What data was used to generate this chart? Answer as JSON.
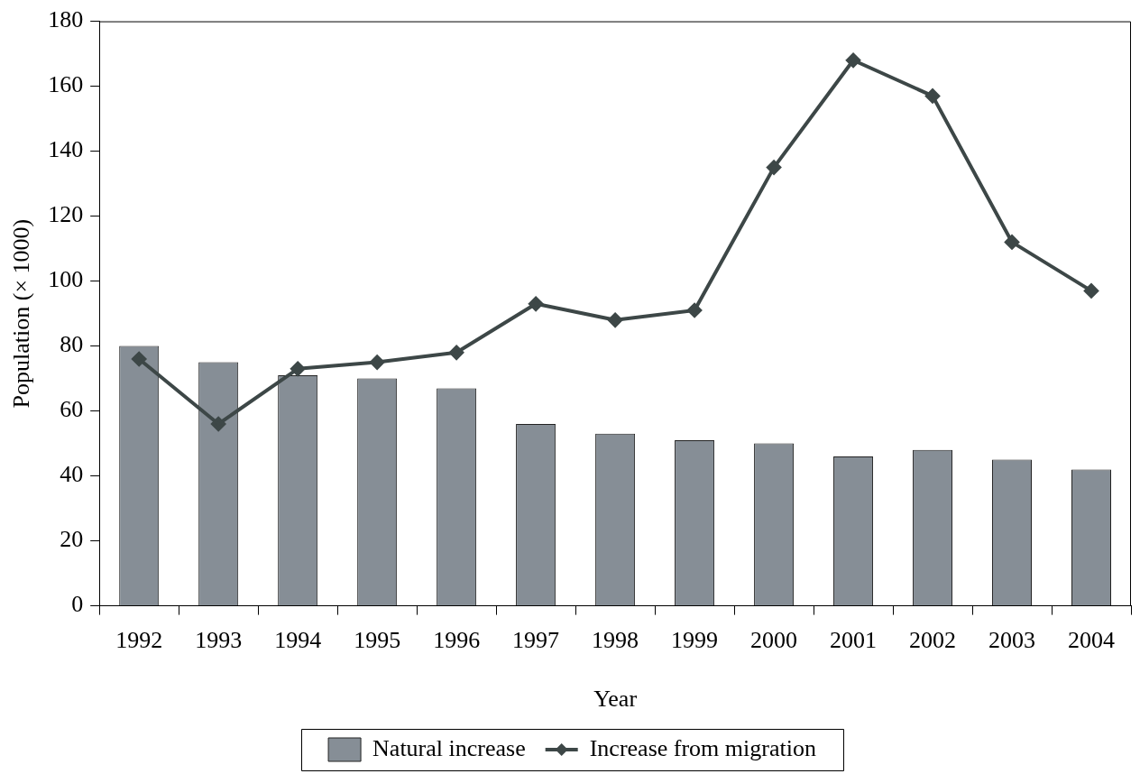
{
  "chart_data": {
    "type": "bar",
    "xlabel": "Year",
    "ylabel": "Population (× 1000)",
    "categories": [
      "1992",
      "1993",
      "1994",
      "1995",
      "1996",
      "1997",
      "1998",
      "1999",
      "2000",
      "2001",
      "2002",
      "2003",
      "2004"
    ],
    "series": [
      {
        "name": "Natural increase",
        "color": "#868e96",
        "values": [
          80,
          75,
          71,
          70,
          67,
          56,
          53,
          51,
          50,
          46,
          48,
          45,
          42
        ]
      },
      {
        "name": "Increase from migration",
        "type": "line",
        "color": "#3d4747",
        "values": [
          76,
          56,
          73,
          75,
          78,
          93,
          88,
          91,
          135,
          168,
          157,
          112,
          97
        ]
      }
    ],
    "ylim": [
      0,
      180
    ],
    "yticks": [
      0,
      20,
      40,
      60,
      80,
      100,
      120,
      140,
      160,
      180
    ],
    "grid": false,
    "legend": "bottom",
    "marker": "diamond",
    "line_style": "solid"
  }
}
